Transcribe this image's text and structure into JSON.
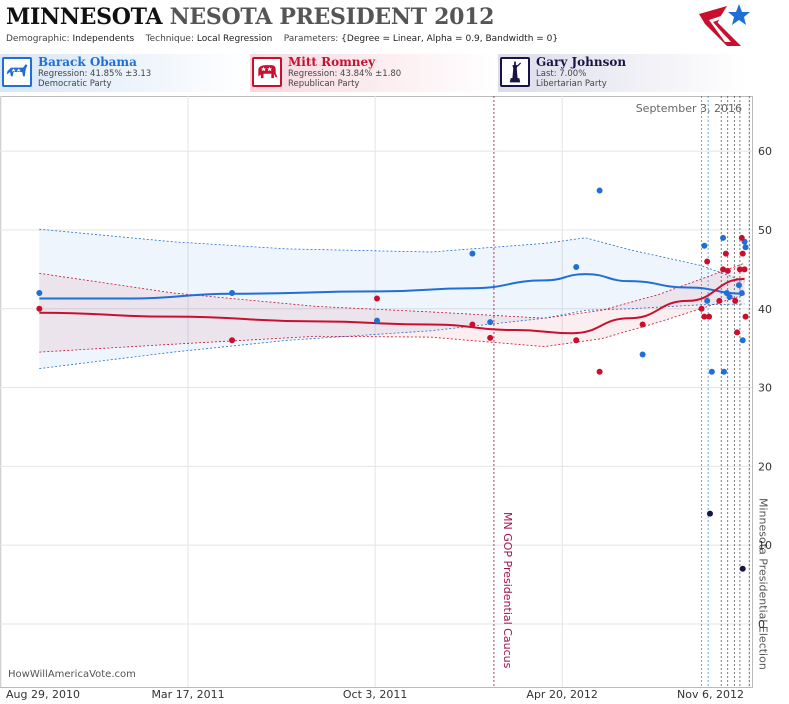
{
  "header": {
    "title_main": "MINNESOTA",
    "title_rest": "NESOTA PRESIDENT 2012",
    "demographic_key": "Demographic:",
    "demographic_value": "Independents",
    "technique_key": "Technique:",
    "technique_value": "Local Regression",
    "parameters_key": "Parameters:",
    "parameters_value": "{Degree = Linear, Alpha = 0.9, Bandwidth = 0}"
  },
  "candidates": [
    {
      "name": "Barack Obama",
      "line2": "Regression: 41.85% ±3.13",
      "line3": "Democratic Party",
      "color": "#1f6fd6",
      "icon": "donkey-icon"
    },
    {
      "name": "Mitt Romney",
      "line2": "Regression: 43.84% ±1.80",
      "line3": "Republican Party",
      "color": "#c8102e",
      "icon": "elephant-icon"
    },
    {
      "name": "Gary Johnson",
      "line2": "Last: 7.00%",
      "line3": "Libertarian Party",
      "color": "#1a1446",
      "icon": "liberty-icon"
    }
  ],
  "watermark": "HowWillAmericaVote.com",
  "chart_data": {
    "type": "scatter",
    "date_label": "September 3, 2016",
    "x_ticks": [
      "Aug 29, 2010",
      "Mar 17, 2011",
      "Oct 3, 2011",
      "Apr 20, 2012",
      "Nov 6, 2012"
    ],
    "x_range": [
      "2010-08-29",
      "2012-11-10"
    ],
    "ylim": [
      -8,
      67
    ],
    "y_ticks": [
      0,
      10,
      20,
      30,
      40,
      50,
      60
    ],
    "grid": true,
    "events": [
      {
        "label": "MN GOP Presidential Caucus",
        "date": "2012-02-07",
        "color": "#a0114b"
      },
      {
        "label": "Minnesota Presidential Election",
        "date": "2012-11-06",
        "color": "#555555"
      }
    ],
    "poll_dates": [
      "2012-09-16",
      "2012-09-23",
      "2012-10-07",
      "2012-10-14",
      "2012-10-21",
      "2012-10-27"
    ],
    "series": [
      {
        "name": "Barack Obama",
        "color": "#1f6fd6",
        "points": [
          [
            "2010-10-09",
            42
          ],
          [
            "2011-05-03",
            42
          ],
          [
            "2011-10-05",
            38.5
          ],
          [
            "2012-01-15",
            47
          ],
          [
            "2012-02-03",
            38.3
          ],
          [
            "2012-05-05",
            45.3
          ],
          [
            "2012-05-30",
            55
          ],
          [
            "2012-07-15",
            34.2
          ],
          [
            "2012-09-19",
            48
          ],
          [
            "2012-09-22",
            41
          ],
          [
            "2012-09-27",
            32
          ],
          [
            "2012-10-09",
            49
          ],
          [
            "2012-10-10",
            32
          ],
          [
            "2012-10-13",
            42
          ],
          [
            "2012-10-16",
            41.5
          ],
          [
            "2012-10-26",
            43
          ],
          [
            "2012-10-29",
            42
          ],
          [
            "2012-10-30",
            36
          ],
          [
            "2012-11-01",
            48.5
          ],
          [
            "2012-11-02",
            47.8
          ]
        ],
        "trend": [
          [
            "2010-10-09",
            41.3
          ],
          [
            "2011-01-15",
            41.3
          ],
          [
            "2011-05-03",
            41.9
          ],
          [
            "2011-10-05",
            42.2
          ],
          [
            "2012-01-15",
            42.6
          ],
          [
            "2012-04-01",
            43.6
          ],
          [
            "2012-05-15",
            44.4
          ],
          [
            "2012-07-01",
            43.5
          ],
          [
            "2012-09-01",
            42.7
          ],
          [
            "2012-11-01",
            41.9
          ]
        ],
        "band_upper": [
          [
            "2010-10-09",
            50.1
          ],
          [
            "2011-03-01",
            48.5
          ],
          [
            "2011-07-01",
            47.6
          ],
          [
            "2011-12-01",
            47.2
          ],
          [
            "2012-04-01",
            48.3
          ],
          [
            "2012-05-15",
            49.0
          ],
          [
            "2012-07-01",
            47.5
          ],
          [
            "2012-09-15",
            45.5
          ],
          [
            "2012-11-01",
            43.5
          ]
        ],
        "band_lower": [
          [
            "2010-10-09",
            32.4
          ],
          [
            "2011-03-01",
            34.5
          ],
          [
            "2011-07-01",
            36.0
          ],
          [
            "2011-12-01",
            37.2
          ],
          [
            "2012-04-01",
            38.8
          ],
          [
            "2012-05-15",
            39.8
          ],
          [
            "2012-07-01",
            40.0
          ],
          [
            "2012-09-15",
            40.5
          ],
          [
            "2012-11-01",
            40.6
          ]
        ]
      },
      {
        "name": "Mitt Romney",
        "color": "#c8102e",
        "points": [
          [
            "2010-10-09",
            40
          ],
          [
            "2011-05-03",
            36
          ],
          [
            "2011-10-05",
            41.3
          ],
          [
            "2012-01-15",
            38
          ],
          [
            "2012-02-03",
            36.3
          ],
          [
            "2012-05-05",
            36
          ],
          [
            "2012-05-30",
            32
          ],
          [
            "2012-07-15",
            38
          ],
          [
            "2012-09-16",
            40
          ],
          [
            "2012-09-19",
            39
          ],
          [
            "2012-09-22",
            46
          ],
          [
            "2012-09-24",
            39
          ],
          [
            "2012-10-05",
            41
          ],
          [
            "2012-10-09",
            45
          ],
          [
            "2012-10-12",
            47
          ],
          [
            "2012-10-14",
            44.8
          ],
          [
            "2012-10-22",
            41
          ],
          [
            "2012-10-24",
            37
          ],
          [
            "2012-10-27",
            45
          ],
          [
            "2012-10-29",
            49
          ],
          [
            "2012-10-30",
            47
          ],
          [
            "2012-11-01",
            45
          ],
          [
            "2012-11-02",
            39
          ]
        ],
        "trend": [
          [
            "2010-10-09",
            39.5
          ],
          [
            "2011-03-01",
            39.0
          ],
          [
            "2011-08-01",
            38.4
          ],
          [
            "2011-12-01",
            38.0
          ],
          [
            "2012-03-01",
            37.3
          ],
          [
            "2012-05-01",
            36.9
          ],
          [
            "2012-07-01",
            38.8
          ],
          [
            "2012-09-01",
            41.0
          ],
          [
            "2012-11-01",
            43.8
          ]
        ],
        "band_upper": [
          [
            "2010-10-09",
            44.5
          ],
          [
            "2011-03-01",
            42.0
          ],
          [
            "2011-08-01",
            40.3
          ],
          [
            "2011-12-01",
            39.6
          ],
          [
            "2012-04-01",
            38.8
          ],
          [
            "2012-06-01",
            39.8
          ],
          [
            "2012-08-01",
            41.8
          ],
          [
            "2012-11-01",
            45.8
          ]
        ],
        "band_lower": [
          [
            "2010-10-09",
            34.5
          ],
          [
            "2011-03-01",
            35.5
          ],
          [
            "2011-08-01",
            36.5
          ],
          [
            "2011-12-01",
            36.4
          ],
          [
            "2012-04-01",
            35.2
          ],
          [
            "2012-06-01",
            36.2
          ],
          [
            "2012-08-01",
            38.3
          ],
          [
            "2012-11-01",
            41.8
          ]
        ]
      },
      {
        "name": "Gary Johnson",
        "color": "#1a1446",
        "points": [
          [
            "2012-09-25",
            14
          ],
          [
            "2012-10-30",
            7
          ]
        ]
      }
    ]
  }
}
